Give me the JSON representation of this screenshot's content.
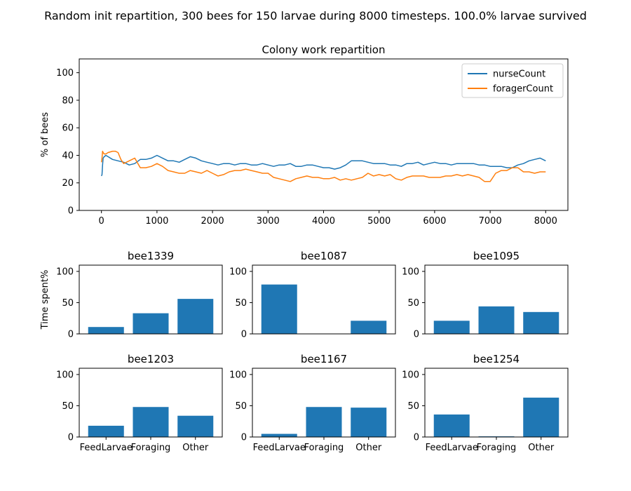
{
  "figure": {
    "suptitle": "Random init repartition, 300 bees for 150 larvae during 8000 timesteps. 100.0% larvae survived",
    "colors": {
      "nurse": "#1f77b4",
      "forager": "#ff7f0e",
      "bar": "#1f77b4"
    }
  },
  "chart_data": [
    {
      "type": "line",
      "title": "Colony work repartition",
      "xlabel": "",
      "ylabel": "% of bees",
      "xlim": [
        -400,
        8400
      ],
      "ylim": [
        0,
        110
      ],
      "xticks": [
        0,
        1000,
        2000,
        3000,
        4000,
        5000,
        6000,
        7000,
        8000
      ],
      "yticks": [
        0,
        20,
        40,
        60,
        80,
        100
      ],
      "legend": "top-right",
      "series": [
        {
          "name": "nurseCount",
          "color": "#1f77b4",
          "x": [
            0,
            10,
            20,
            30,
            50,
            80,
            120,
            200,
            300,
            400,
            500,
            600,
            700,
            800,
            900,
            1000,
            1100,
            1200,
            1300,
            1400,
            1500,
            1600,
            1700,
            1800,
            1900,
            2000,
            2100,
            2200,
            2300,
            2400,
            2500,
            2600,
            2700,
            2800,
            2900,
            3000,
            3100,
            3200,
            3300,
            3400,
            3500,
            3600,
            3700,
            3800,
            3900,
            4000,
            4100,
            4200,
            4300,
            4400,
            4500,
            4600,
            4700,
            4800,
            4900,
            5000,
            5100,
            5200,
            5300,
            5400,
            5500,
            5600,
            5700,
            5800,
            5900,
            6000,
            6100,
            6200,
            6300,
            6400,
            6500,
            6600,
            6700,
            6800,
            6900,
            7000,
            7100,
            7200,
            7300,
            7400,
            7500,
            7600,
            7700,
            7800,
            7900,
            8000
          ],
          "y": [
            25,
            26,
            33,
            38,
            39,
            40,
            39,
            37,
            36,
            35,
            33,
            34,
            37,
            37,
            38,
            40,
            38,
            36,
            36,
            35,
            37,
            39,
            38,
            36,
            35,
            34,
            33,
            34,
            34,
            33,
            34,
            34,
            33,
            33,
            34,
            33,
            32,
            33,
            33,
            34,
            32,
            32,
            33,
            33,
            32,
            31,
            31,
            30,
            31,
            33,
            36,
            36,
            36,
            35,
            34,
            34,
            34,
            33,
            33,
            32,
            34,
            34,
            35,
            33,
            34,
            35,
            34,
            34,
            33,
            34,
            34,
            34,
            34,
            33,
            33,
            32,
            32,
            32,
            31,
            31,
            33,
            34,
            36,
            37,
            38,
            36
          ]
        },
        {
          "name": "foragerCount",
          "color": "#ff7f0e",
          "x": [
            0,
            10,
            20,
            30,
            50,
            80,
            120,
            200,
            250,
            300,
            350,
            400,
            500,
            600,
            700,
            800,
            900,
            1000,
            1100,
            1200,
            1300,
            1400,
            1500,
            1600,
            1700,
            1800,
            1900,
            2000,
            2100,
            2200,
            2300,
            2400,
            2500,
            2600,
            2700,
            2800,
            2900,
            3000,
            3100,
            3200,
            3300,
            3400,
            3500,
            3600,
            3700,
            3800,
            3900,
            4000,
            4100,
            4200,
            4300,
            4400,
            4500,
            4600,
            4700,
            4800,
            4900,
            5000,
            5100,
            5200,
            5300,
            5400,
            5500,
            5600,
            5700,
            5800,
            5900,
            6000,
            6100,
            6200,
            6300,
            6400,
            6500,
            6600,
            6700,
            6800,
            6900,
            7000,
            7100,
            7200,
            7300,
            7400,
            7500,
            7600,
            7700,
            7800,
            7900,
            8000
          ],
          "y": [
            35,
            38,
            43,
            42,
            41,
            41,
            42,
            43,
            43,
            42,
            37,
            34,
            36,
            38,
            31,
            31,
            32,
            34,
            32,
            29,
            28,
            27,
            27,
            29,
            28,
            27,
            29,
            27,
            25,
            26,
            28,
            29,
            29,
            30,
            29,
            28,
            27,
            27,
            24,
            23,
            22,
            21,
            23,
            24,
            25,
            24,
            24,
            23,
            23,
            24,
            22,
            23,
            22,
            23,
            24,
            27,
            25,
            26,
            25,
            26,
            23,
            22,
            24,
            25,
            25,
            25,
            24,
            24,
            24,
            25,
            25,
            26,
            25,
            26,
            25,
            24,
            21,
            21,
            27,
            29,
            29,
            31,
            31,
            28,
            28,
            27,
            28,
            28
          ]
        }
      ]
    },
    {
      "type": "bar",
      "title": "bee1339",
      "ylabel": "Time spent%",
      "categories": [
        "FeedLarvae",
        "Foraging",
        "Other"
      ],
      "values": [
        11,
        33,
        56
      ],
      "ylim": [
        0,
        110
      ],
      "yticks": [
        0,
        50,
        100
      ],
      "show_xticks": false
    },
    {
      "type": "bar",
      "title": "bee1087",
      "ylabel": "",
      "categories": [
        "FeedLarvae",
        "Foraging",
        "Other"
      ],
      "values": [
        79,
        0,
        21
      ],
      "ylim": [
        0,
        110
      ],
      "yticks": [
        0,
        50,
        100
      ],
      "show_xticks": false
    },
    {
      "type": "bar",
      "title": "bee1095",
      "ylabel": "",
      "categories": [
        "FeedLarvae",
        "Foraging",
        "Other"
      ],
      "values": [
        21,
        44,
        35
      ],
      "ylim": [
        0,
        110
      ],
      "yticks": [
        0,
        50,
        100
      ],
      "show_xticks": false
    },
    {
      "type": "bar",
      "title": "bee1203",
      "ylabel": "",
      "categories": [
        "FeedLarvae",
        "Foraging",
        "Other"
      ],
      "values": [
        18,
        48,
        34
      ],
      "ylim": [
        0,
        110
      ],
      "yticks": [
        0,
        50,
        100
      ],
      "show_xticks": true
    },
    {
      "type": "bar",
      "title": "bee1167",
      "ylabel": "",
      "categories": [
        "FeedLarvae",
        "Foraging",
        "Other"
      ],
      "values": [
        5,
        48,
        47
      ],
      "ylim": [
        0,
        110
      ],
      "yticks": [
        0,
        50,
        100
      ],
      "show_xticks": true
    },
    {
      "type": "bar",
      "title": "bee1254",
      "ylabel": "",
      "categories": [
        "FeedLarvae",
        "Foraging",
        "Other"
      ],
      "values": [
        36,
        1,
        63
      ],
      "ylim": [
        0,
        110
      ],
      "yticks": [
        0,
        50,
        100
      ],
      "show_xticks": true
    }
  ]
}
